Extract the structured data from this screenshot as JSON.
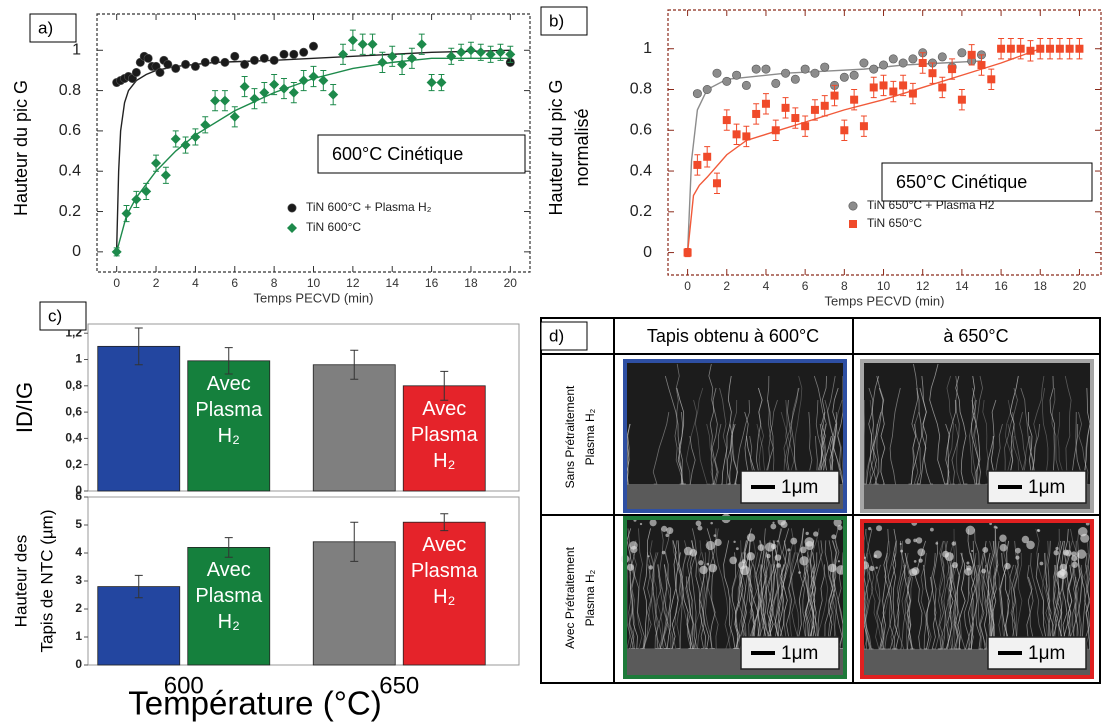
{
  "chart_data": [
    {
      "type": "scatter",
      "panel_label": "a)",
      "ylabel": "Hauteur du pic G",
      "xlabel": "Temps PECVD (min)",
      "annotation": "600°C Cinétique",
      "axis_color": "#333333",
      "xlim": [
        -1,
        21
      ],
      "ylim": [
        -0.1,
        1.18
      ],
      "xticks": [
        0,
        2,
        4,
        6,
        8,
        10,
        12,
        14,
        16,
        18,
        20
      ],
      "yticks": [
        0,
        0.2,
        0.4,
        0.6,
        0.8,
        1
      ],
      "series": [
        {
          "name": "TiN 600°C + Plasma H₂",
          "color": "#1a1a1a",
          "marker": "circle",
          "x": [
            0,
            0.2,
            0.4,
            0.6,
            0.8,
            1,
            1.2,
            1.4,
            1.6,
            1.8,
            2,
            2.2,
            2.4,
            2.6,
            3,
            3.5,
            4,
            4.5,
            5,
            5.5,
            6,
            6.5,
            7,
            7.5,
            8,
            8.5,
            9,
            9.5,
            10,
            20
          ],
          "values": [
            0.84,
            0.85,
            0.86,
            0.87,
            0.86,
            0.89,
            0.94,
            0.97,
            0.96,
            0.92,
            0.92,
            0.89,
            0.95,
            0.93,
            0.91,
            0.93,
            0.92,
            0.94,
            0.95,
            0.94,
            0.97,
            0.93,
            0.95,
            0.96,
            0.95,
            0.98,
            0.98,
            0.99,
            1.02,
            0.94
          ]
        },
        {
          "name": "TiN 600°C",
          "color": "#1d8a4b",
          "marker": "diamond",
          "x": [
            0,
            0.5,
            1,
            1.5,
            2,
            2.5,
            3,
            3.5,
            4,
            4.5,
            5,
            5.5,
            6,
            6.5,
            7,
            7.5,
            8,
            8.5,
            9,
            9.5,
            10,
            10.5,
            11,
            11.5,
            12,
            12.5,
            13,
            13.5,
            14,
            14.5,
            15,
            15.5,
            16,
            16.5,
            17,
            17.5,
            18,
            18.5,
            19,
            19.5,
            20
          ],
          "values": [
            0,
            0.19,
            0.26,
            0.3,
            0.44,
            0.38,
            0.56,
            0.53,
            0.57,
            0.63,
            0.75,
            0.75,
            0.67,
            0.82,
            0.76,
            0.79,
            0.83,
            0.81,
            0.79,
            0.85,
            0.87,
            0.85,
            0.78,
            0.98,
            1.05,
            1.03,
            1.03,
            0.94,
            0.97,
            0.93,
            0.96,
            1.03,
            0.84,
            0.84,
            0.97,
            0.99,
            1.0,
            0.99,
            0.98,
            0.99,
            0.98
          ],
          "errors": [
            0.02,
            0.04,
            0.04,
            0.04,
            0.04,
            0.04,
            0.04,
            0.04,
            0.04,
            0.04,
            0.05,
            0.05,
            0.05,
            0.05,
            0.05,
            0.05,
            0.05,
            0.05,
            0.05,
            0.05,
            0.05,
            0.05,
            0.05,
            0.05,
            0.05,
            0.05,
            0.05,
            0.05,
            0.05,
            0.05,
            0.05,
            0.05,
            0.04,
            0.04,
            0.04,
            0.04,
            0.04,
            0.04,
            0.04,
            0.04,
            0.04
          ]
        }
      ],
      "fits": [
        {
          "color": "#222222",
          "x": [
            0,
            0.1,
            0.2,
            0.4,
            0.6,
            1,
            1.5,
            2,
            3,
            5,
            8,
            12,
            16,
            20
          ],
          "values": [
            0.02,
            0.4,
            0.6,
            0.74,
            0.8,
            0.85,
            0.88,
            0.9,
            0.92,
            0.94,
            0.95,
            0.97,
            0.99,
            1.0
          ]
        },
        {
          "color": "#1d8a4b",
          "x": [
            0,
            0.5,
            1,
            2,
            3,
            4,
            6,
            8,
            10,
            12,
            14,
            16,
            18,
            20
          ],
          "values": [
            0,
            0.18,
            0.27,
            0.4,
            0.5,
            0.58,
            0.7,
            0.79,
            0.86,
            0.91,
            0.94,
            0.96,
            0.96,
            0.96
          ]
        }
      ]
    },
    {
      "type": "scatter",
      "panel_label": "b)",
      "ylabel": [
        "Hauteur du pic G",
        "normalisé"
      ],
      "xlabel": "Temps PECVD (min)",
      "annotation": "650°C Cinétique",
      "axis_color": "#8b2a1a",
      "xlim": [
        -1,
        21.1
      ],
      "ylim": [
        -0.11,
        1.19
      ],
      "xticks": [
        0,
        2,
        4,
        6,
        8,
        10,
        12,
        14,
        16,
        18,
        20
      ],
      "yticks": [
        0,
        0.2,
        0.4,
        0.6,
        0.8,
        1
      ],
      "series": [
        {
          "name": "TiN 650°C + Plasma H2",
          "color": "#8c8c8c",
          "marker": "circle",
          "x": [
            0.5,
            1,
            1.5,
            2,
            2.5,
            3,
            3.5,
            4,
            4.5,
            5,
            5.5,
            6,
            6.5,
            7,
            7.5,
            8,
            8.5,
            9,
            9.5,
            10,
            10.5,
            11,
            11.5,
            12,
            12.5,
            13,
            13.5,
            14,
            14.5,
            15
          ],
          "values": [
            0.78,
            0.8,
            0.88,
            0.84,
            0.87,
            0.82,
            0.9,
            0.9,
            0.83,
            0.88,
            0.85,
            0.9,
            0.88,
            0.91,
            0.82,
            0.86,
            0.87,
            0.93,
            0.9,
            0.92,
            0.95,
            0.93,
            0.95,
            0.98,
            0.93,
            0.96,
            0.91,
            0.98,
            0.94,
            0.97
          ]
        },
        {
          "name": "TiN 650°C",
          "color": "#f04a2a",
          "marker": "square",
          "x": [
            0,
            0.5,
            1,
            1.5,
            2,
            2.5,
            3,
            3.5,
            4,
            4.5,
            5,
            5.5,
            6,
            6.5,
            7,
            7.5,
            8,
            8.5,
            9,
            9.5,
            10,
            10.5,
            11,
            11.5,
            12,
            12.5,
            13,
            13.5,
            14,
            14.5,
            15,
            15.5,
            16,
            16.5,
            17,
            17.5,
            18,
            18.5,
            19,
            19.5,
            20
          ],
          "values": [
            0,
            0.43,
            0.47,
            0.34,
            0.65,
            0.58,
            0.57,
            0.68,
            0.73,
            0.6,
            0.71,
            0.66,
            0.62,
            0.7,
            0.72,
            0.77,
            0.6,
            0.75,
            0.62,
            0.81,
            0.82,
            0.79,
            0.82,
            0.78,
            0.93,
            0.88,
            0.81,
            0.9,
            0.75,
            0.97,
            0.92,
            0.85,
            1,
            1,
            1,
            0.99,
            1,
            1,
            1,
            1,
            1
          ],
          "errors": [
            0.02,
            0.05,
            0.05,
            0.05,
            0.05,
            0.05,
            0.05,
            0.05,
            0.05,
            0.05,
            0.05,
            0.05,
            0.05,
            0.05,
            0.05,
            0.05,
            0.05,
            0.05,
            0.05,
            0.05,
            0.05,
            0.05,
            0.05,
            0.05,
            0.05,
            0.05,
            0.05,
            0.05,
            0.05,
            0.05,
            0.05,
            0.05,
            0.05,
            0.05,
            0.05,
            0.05,
            0.05,
            0.05,
            0.05,
            0.05,
            0.05
          ]
        }
      ],
      "fits": [
        {
          "color": "#8c8c8c",
          "x": [
            0,
            0.2,
            0.5,
            1,
            2,
            3,
            5,
            7,
            9,
            11,
            13,
            15
          ],
          "values": [
            0,
            0.45,
            0.7,
            0.8,
            0.85,
            0.86,
            0.88,
            0.89,
            0.9,
            0.92,
            0.93,
            0.94
          ]
        },
        {
          "color": "#f15a3a",
          "x": [
            0,
            0.3,
            0.6,
            1,
            2,
            3,
            4,
            6,
            8,
            10,
            12,
            14,
            16,
            18
          ],
          "values": [
            0,
            0.28,
            0.33,
            0.37,
            0.48,
            0.55,
            0.58,
            0.64,
            0.7,
            0.75,
            0.81,
            0.87,
            0.93,
            1.0
          ]
        }
      ]
    },
    {
      "type": "bar",
      "panel_label": "c)",
      "ylabel": "ID/IG",
      "ylim": [
        0,
        1.27
      ],
      "yticks": [
        0,
        {
          "value": 0.2,
          "label": "0,2"
        },
        {
          "value": 0.4,
          "label": "0,4"
        },
        {
          "value": 0.6,
          "label": "0,6"
        },
        {
          "value": 0.8,
          "label": "0,8"
        },
        1,
        {
          "value": 1.2,
          "label": "1,2"
        }
      ],
      "series": [
        {
          "color": [
            "#2346a0",
            "#7f7f7f"
          ],
          "values": [
            1.1,
            0.96
          ],
          "errors": [
            0.14,
            0.11
          ]
        },
        {
          "name": "Avec Plasma H₂",
          "color": [
            "#15803d",
            "#e5232a"
          ],
          "values": [
            0.99,
            0.8
          ],
          "errors": [
            0.1,
            0.11
          ]
        }
      ]
    },
    {
      "type": "bar",
      "ylabel": [
        "Hauteur des",
        "Tapis de NTC (µm)"
      ],
      "xlabel": "Température (°C)",
      "categories": [
        "600",
        "650"
      ],
      "ylim": [
        0,
        6
      ],
      "yticks": [
        0,
        1,
        2,
        3,
        4,
        5,
        6
      ],
      "series": [
        {
          "color": [
            "#2346a0",
            "#7f7f7f"
          ],
          "values": [
            2.8,
            4.4
          ],
          "errors": [
            0.4,
            0.7
          ]
        },
        {
          "name": "Avec Plasma H₂",
          "color": [
            "#15803d",
            "#e5232a"
          ],
          "values": [
            4.2,
            5.1
          ],
          "errors": [
            0.35,
            0.3
          ]
        }
      ]
    }
  ],
  "figure_d": {
    "label": "d)",
    "columns": [
      "Tapis obtenu à 600°C",
      "à 650°C"
    ],
    "rows": [
      [
        "Sans Prétraitement",
        "Plasma H₂"
      ],
      [
        "Avec Prétraitement",
        "Plasma H₂"
      ]
    ],
    "scale_bar": "1μm",
    "image_borders": [
      [
        "#2e4fa3",
        "#a6a6a6"
      ],
      [
        "#1e7a3a",
        "#e02020"
      ]
    ]
  }
}
